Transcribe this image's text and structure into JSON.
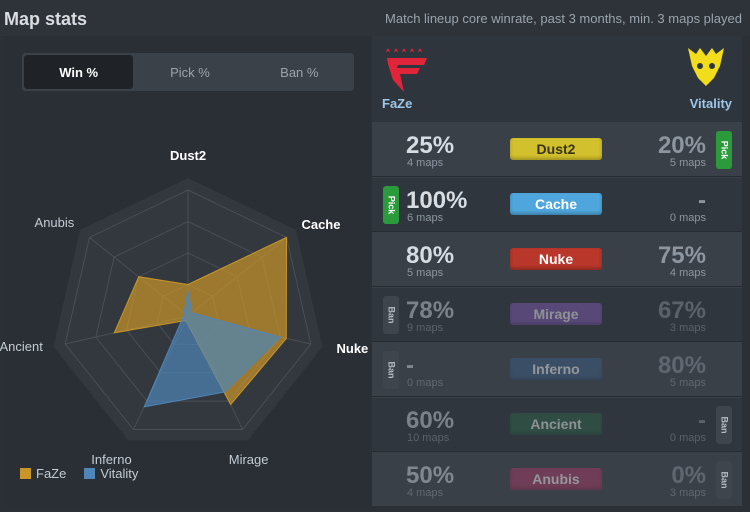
{
  "header": {
    "title": "Map stats",
    "subtitle": "Match lineup core winrate, past 3 months, min. 3 maps played"
  },
  "tabs": [
    {
      "label": "Win %",
      "active": true
    },
    {
      "label": "Pick %",
      "active": false
    },
    {
      "label": "Ban %",
      "active": false
    }
  ],
  "radar": {
    "axes": [
      "Dust2",
      "Cache",
      "Nuke",
      "Mirage",
      "Inferno",
      "Ancient",
      "Anubis"
    ],
    "highlight_axes": [
      "Dust2",
      "Cache",
      "Nuke"
    ]
  },
  "legend": [
    {
      "name": "FaZe",
      "color": "#c9962a"
    },
    {
      "name": "Vitality",
      "color": "#4f86b8"
    }
  ],
  "chart_data": {
    "type": "radar",
    "categories": [
      "Dust2",
      "Cache",
      "Nuke",
      "Mirage",
      "Inferno",
      "Ancient",
      "Anubis"
    ],
    "series": [
      {
        "name": "FaZe",
        "values": [
          25,
          100,
          80,
          78,
          0,
          60,
          50
        ]
      },
      {
        "name": "Vitality",
        "values": [
          20,
          0,
          75,
          67,
          80,
          0,
          0
        ]
      }
    ],
    "ylim": [
      0,
      100
    ]
  },
  "teams": {
    "left": {
      "name": "FaZe"
    },
    "right": {
      "name": "Vitality"
    }
  },
  "maps": [
    {
      "name": "Dust2",
      "color": "#d2c02c",
      "text_color": "#3a3510",
      "left_pct": "25%",
      "left_maps": "4 maps",
      "right_pct": "20%",
      "right_maps": "5 maps",
      "left_badge": "",
      "right_badge": "Pick",
      "dim": false
    },
    {
      "name": "Cache",
      "color": "#4ea6dc",
      "text_color": "#ffffff",
      "left_pct": "100%",
      "left_maps": "6 maps",
      "right_pct": "-",
      "right_maps": "0 maps",
      "left_badge": "Pick",
      "right_badge": "",
      "dim": false
    },
    {
      "name": "Nuke",
      "color": "#b8362a",
      "text_color": "#ffffff",
      "left_pct": "80%",
      "left_maps": "5 maps",
      "right_pct": "75%",
      "right_maps": "4 maps",
      "left_badge": "",
      "right_badge": "",
      "dim": false
    },
    {
      "name": "Mirage",
      "color": "#8a5fc0",
      "text_color": "#ffffff",
      "left_pct": "78%",
      "left_maps": "9 maps",
      "right_pct": "67%",
      "right_maps": "3 maps",
      "left_badge": "Ban",
      "right_badge": "",
      "dim": true
    },
    {
      "name": "Inferno",
      "color": "#3b5f8a",
      "text_color": "#ffffff",
      "left_pct": "-",
      "left_maps": "0 maps",
      "right_pct": "80%",
      "right_maps": "5 maps",
      "left_badge": "Ban",
      "right_badge": "",
      "dim": true
    },
    {
      "name": "Ancient",
      "color": "#2f6a4c",
      "text_color": "#ffffff",
      "left_pct": "60%",
      "left_maps": "10 maps",
      "right_pct": "-",
      "right_maps": "0 maps",
      "left_badge": "",
      "right_badge": "Ban",
      "dim": true
    },
    {
      "name": "Anubis",
      "color": "#b03a6a",
      "text_color": "#ffffff",
      "left_pct": "50%",
      "left_maps": "4 maps",
      "right_pct": "0%",
      "right_maps": "3 maps",
      "left_badge": "",
      "right_badge": "Ban",
      "dim": true
    }
  ]
}
